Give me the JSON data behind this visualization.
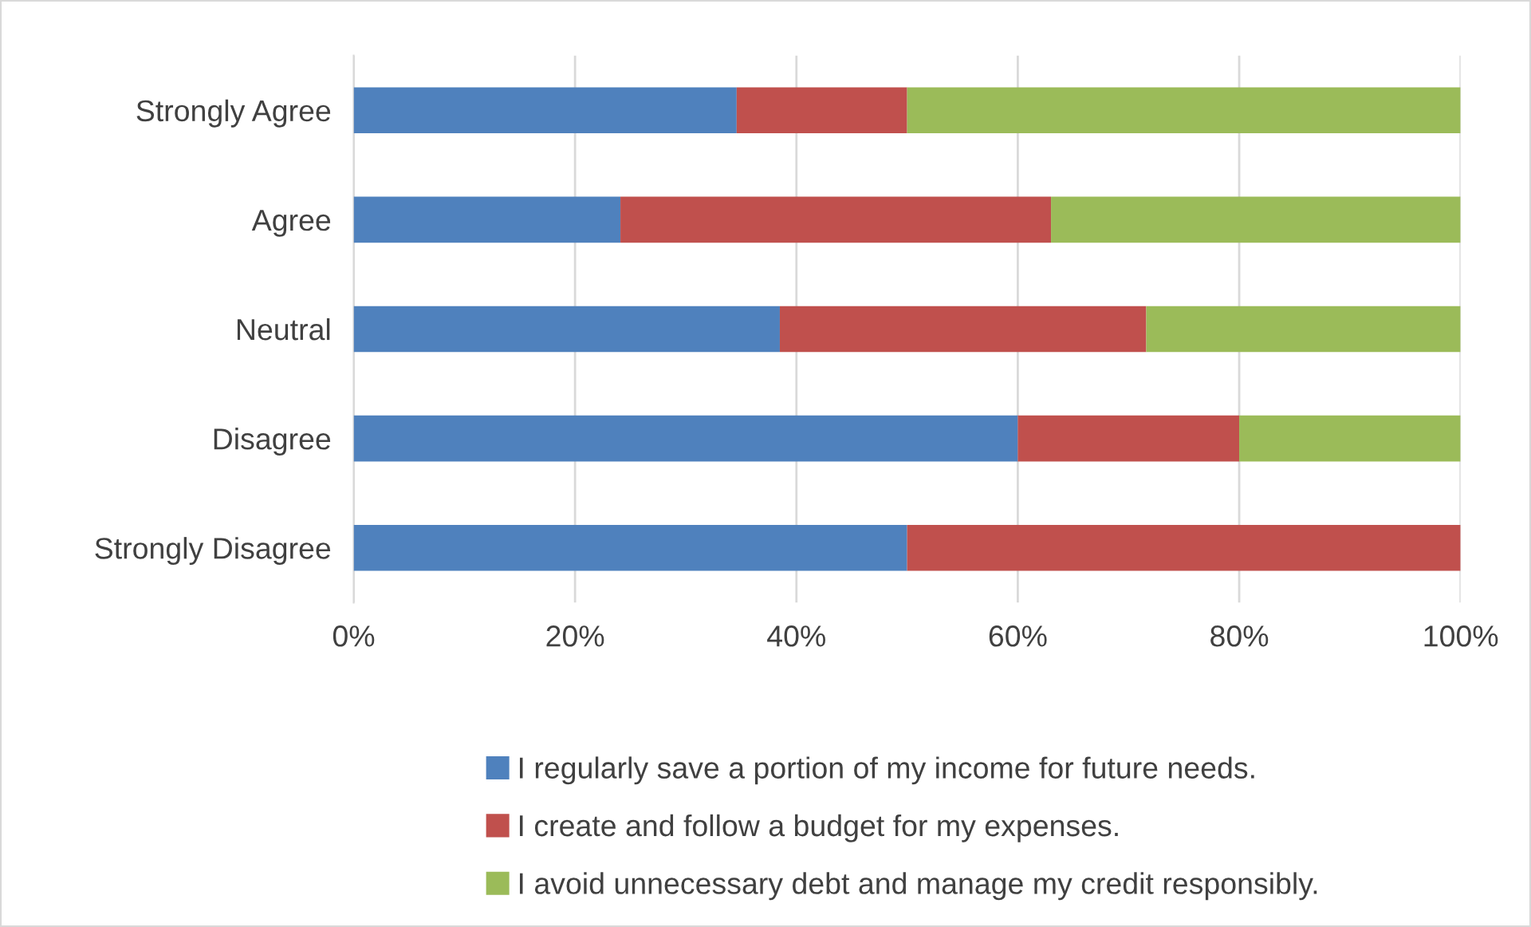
{
  "chart_data": {
    "type": "bar",
    "orientation": "horizontal",
    "stacked": true,
    "categories": [
      "Strongly Agree",
      "Agree",
      "Neutral",
      "Disagree",
      "Strongly Disagree"
    ],
    "series": [
      {
        "name": "I regularly save a portion of my income for future needs.",
        "color": "#4f81bd",
        "values": [
          34.6,
          24.1,
          38.5,
          60,
          50
        ]
      },
      {
        "name": "I create and follow a budget for my expenses.",
        "color": "#c0504d",
        "values": [
          15.4,
          38.9,
          33.1,
          20,
          50
        ]
      },
      {
        "name": "I avoid unnecessary debt and manage my credit responsibly.",
        "color": "#9bbb59",
        "values": [
          50,
          37,
          28.4,
          20,
          0
        ]
      }
    ],
    "xlim": [
      0,
      100
    ],
    "xticks": [
      {
        "value": 0,
        "label": "0%"
      },
      {
        "value": 20,
        "label": "20%"
      },
      {
        "value": 40,
        "label": "40%"
      },
      {
        "value": 60,
        "label": "60%"
      },
      {
        "value": 80,
        "label": "80%"
      },
      {
        "value": 100,
        "label": "100%"
      }
    ],
    "grid": "x",
    "legend": "bottom"
  }
}
